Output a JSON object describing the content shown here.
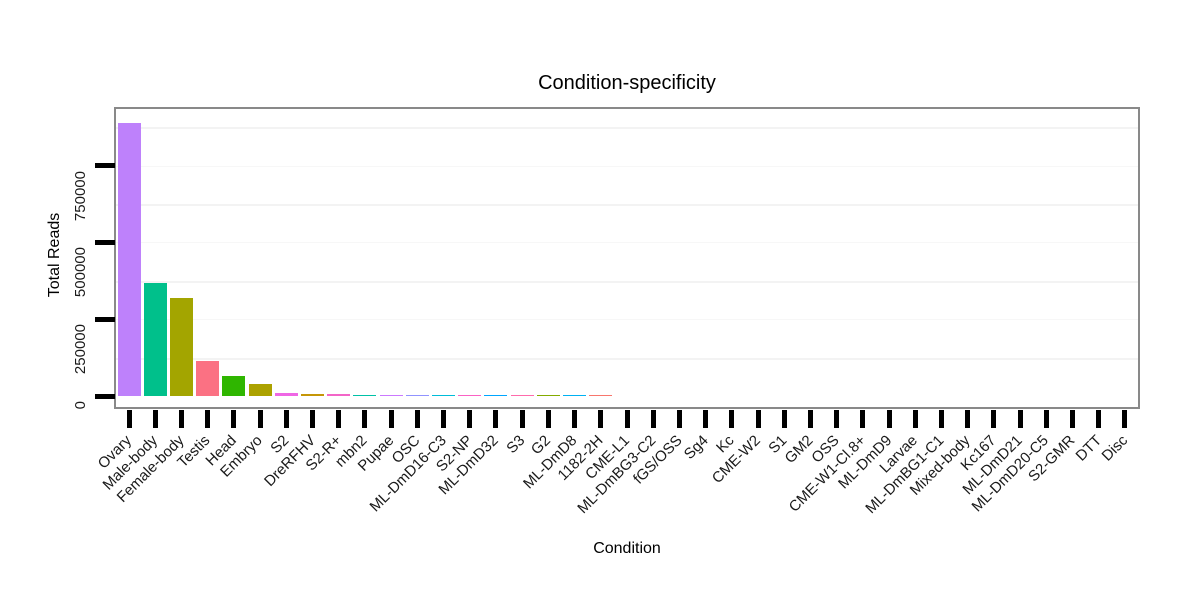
{
  "page": {
    "background": "#ffffff"
  },
  "chart_data": {
    "type": "bar",
    "title": "Condition-specificity",
    "xlabel": "Condition",
    "ylabel": "Total Reads",
    "ylim": [
      0,
      932000
    ],
    "yticks": [
      0,
      250000,
      500000,
      750000
    ],
    "ytick_labels": [
      "0",
      "250000",
      "500000",
      "750000"
    ],
    "grid": "faint horizontal gridlines, white panel, gray border",
    "legend": "none",
    "categories": [
      "Ovary",
      "Male-body",
      "Female-body",
      "Testis",
      "Head",
      "Embryo",
      "S2",
      "DreRFHV",
      "S2-R+",
      "mbn2",
      "Pupae",
      "OSC",
      "ML-DmD16-C3",
      "S2-NP",
      "ML-DmD32",
      "S3",
      "G2",
      "ML-DmD8",
      "1182-2H",
      "CME-L1",
      "ML-DmBG3-C2",
      "fGS/OSS",
      "Sg4",
      "Kc",
      "CME-W2",
      "S1",
      "GM2",
      "OSS",
      "CME-W1-Cl.8+",
      "ML-DmD9",
      "Larvae",
      "ML-DmBG1-C1",
      "Mixed-body",
      "Kc167",
      "ML-DmD21",
      "ML-DmD20-C5",
      "S2-GMR",
      "DTT",
      "Disc"
    ],
    "values": [
      890000,
      367000,
      318000,
      113000,
      65000,
      38000,
      11000,
      7500,
      5000,
      4300,
      4000,
      3500,
      3300,
      3100,
      3000,
      2800,
      2600,
      2400,
      2200,
      0,
      0,
      0,
      0,
      0,
      0,
      0,
      0,
      0,
      0,
      0,
      0,
      0,
      0,
      0,
      0,
      0,
      0,
      0,
      0
    ],
    "colors": [
      "#be81fb",
      "#00c08b",
      "#a3a500",
      "#fb7183",
      "#2fb600",
      "#aca200",
      "#ef67e5",
      "#c59607",
      "#f365c8",
      "#00c1a7",
      "#cb79ff",
      "#9193ff",
      "#00bcd9",
      "#fa62c4",
      "#00a6ff",
      "#ff6bac",
      "#84ab00",
      "#00b1f2",
      "#f8766d",
      null,
      null,
      null,
      null,
      null,
      null,
      null,
      null,
      null,
      null,
      null,
      null,
      null,
      null,
      null,
      null,
      null,
      null,
      null,
      null
    ]
  }
}
